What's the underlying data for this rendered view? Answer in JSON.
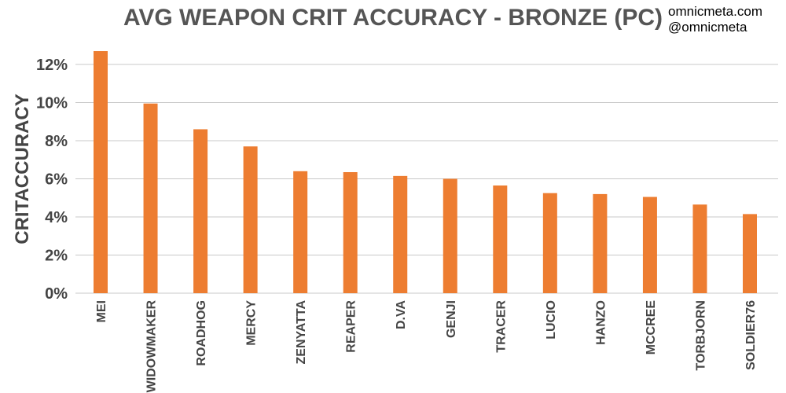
{
  "watermark": {
    "line1": "omnicmeta.com",
    "line2": "@omnicmeta"
  },
  "colors": {
    "bar": "#ED7D31",
    "grid": "#C8C8C8",
    "text": "#444444"
  },
  "chart_data": {
    "type": "bar",
    "title": "AVG WEAPON CRIT ACCURACY - BRONZE (PC)",
    "xlabel": "",
    "ylabel": "CRITACCURACY",
    "ylim": [
      0,
      12
    ],
    "yticks": [
      0,
      2,
      4,
      6,
      8,
      10,
      12
    ],
    "ytick_labels": [
      "0%",
      "2%",
      "4%",
      "6%",
      "8%",
      "10%",
      "12%"
    ],
    "grid": true,
    "categories": [
      "MEI",
      "WIDOWMAKER",
      "ROADHOG",
      "MERCY",
      "ZENYATTA",
      "REAPER",
      "D.VA",
      "GENJI",
      "TRACER",
      "LUCIO",
      "HANZO",
      "MCCREE",
      "TORBJORN",
      "SOLDIER76"
    ],
    "values": [
      12.7,
      9.95,
      8.6,
      7.7,
      6.4,
      6.35,
      6.15,
      6.0,
      5.65,
      5.25,
      5.2,
      5.05,
      4.65,
      4.15
    ]
  }
}
